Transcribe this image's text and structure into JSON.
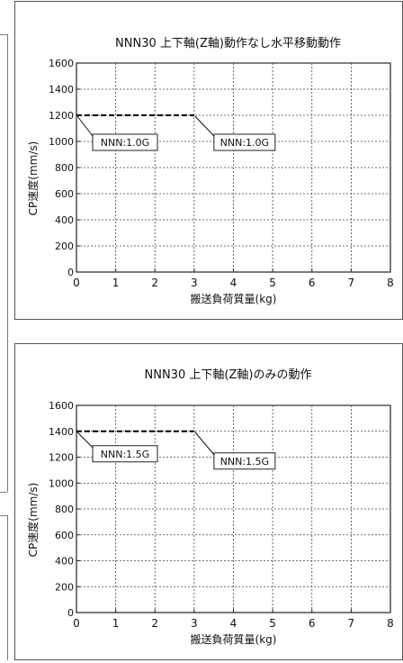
{
  "chart_data": [
    {
      "type": "line",
      "title": "NNN30 上下軸(Z軸)動作なし水平移動動作",
      "xlabel": "搬送負荷質量(kg)",
      "ylabel": "CP速度(mm/s)",
      "xlim": [
        0,
        8
      ],
      "ylim": [
        0,
        1600
      ],
      "xticks": [
        "0",
        "1",
        "2",
        "3",
        "4",
        "5",
        "6",
        "7",
        "8"
      ],
      "yticks": [
        "0",
        "200",
        "400",
        "600",
        "800",
        "1000",
        "1200",
        "1400",
        "1600"
      ],
      "grid": true,
      "series": [
        {
          "x": [
            0,
            3
          ],
          "y": [
            1200,
            1200
          ],
          "style": "dashed",
          "color": "#000000"
        }
      ],
      "annotations": [
        {
          "text": "NNN:1.0G",
          "x": 0,
          "y": 1200
        },
        {
          "text": "NNN:1.0G",
          "x": 3,
          "y": 1200
        }
      ]
    },
    {
      "type": "line",
      "title": "NNN30 上下軸(Z軸)のみの動作",
      "xlabel": "搬送負荷質量(kg)",
      "ylabel": "CP速度(mm/s)",
      "xlim": [
        0,
        8
      ],
      "ylim": [
        0,
        1600
      ],
      "xticks": [
        "0",
        "1",
        "2",
        "3",
        "4",
        "5",
        "6",
        "7",
        "8"
      ],
      "yticks": [
        "0",
        "200",
        "400",
        "600",
        "800",
        "1000",
        "1200",
        "1400",
        "1600"
      ],
      "grid": true,
      "series": [
        {
          "x": [
            0,
            3
          ],
          "y": [
            1400,
            1400
          ],
          "style": "dashed",
          "color": "#000000"
        }
      ],
      "annotations": [
        {
          "text": "NNN:1.5G",
          "x": 0,
          "y": 1400
        },
        {
          "text": "NNN:1.5G",
          "x": 3,
          "y": 1400
        }
      ]
    }
  ]
}
